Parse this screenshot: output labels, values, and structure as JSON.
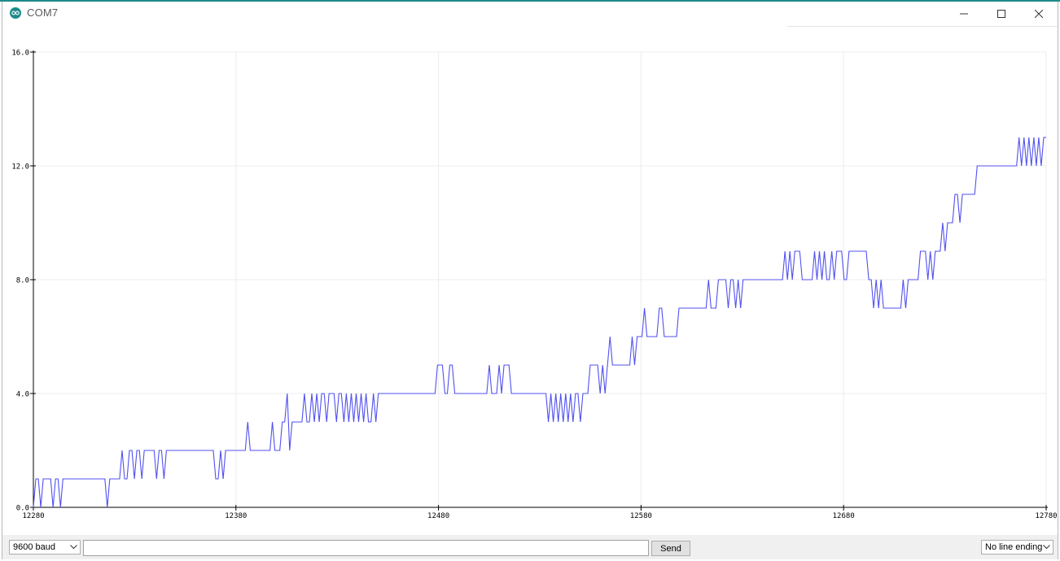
{
  "window": {
    "title": "COM7",
    "accent_color": "#1f8b8b"
  },
  "controls": {
    "minimize_icon": "minimize-icon",
    "maximize_icon": "maximize-icon",
    "close_icon": "close-icon"
  },
  "bottom_bar": {
    "baud_value": "9600 baud",
    "send_input_value": "",
    "send_label": "Send",
    "line_ending_value": "No line ending"
  },
  "chart_data": {
    "type": "line",
    "title": "",
    "xlabel": "",
    "ylabel": "",
    "xlim": [
      12280,
      12780
    ],
    "ylim": [
      0,
      16
    ],
    "x_ticks": [
      "12280",
      "12380",
      "12480",
      "12580",
      "12680",
      "12780"
    ],
    "y_ticks": [
      "0.0",
      "4.0",
      "8.0",
      "12.0",
      "16.0"
    ],
    "grid": true,
    "line_color": "#5050f0",
    "series": [
      {
        "values": [
          0,
          1,
          1,
          0,
          1,
          1,
          1,
          1,
          0,
          1,
          1,
          0,
          1,
          1,
          1,
          1,
          1,
          1,
          1,
          1,
          1,
          1,
          1,
          1,
          1,
          1,
          1,
          1,
          1,
          1,
          0,
          1,
          1,
          1,
          1,
          1,
          2,
          1,
          1,
          2,
          2,
          1,
          2,
          2,
          1,
          2,
          2,
          2,
          2,
          2,
          1,
          2,
          2,
          1,
          2,
          2,
          2,
          2,
          2,
          2,
          2,
          2,
          2,
          2,
          2,
          2,
          2,
          2,
          2,
          2,
          2,
          2,
          2,
          2,
          1,
          1,
          2,
          1,
          2,
          2,
          2,
          2,
          2,
          2,
          2,
          2,
          2,
          3,
          2,
          2,
          2,
          2,
          2,
          2,
          2,
          2,
          2,
          3,
          2,
          2,
          2,
          3,
          3,
          4,
          2,
          3,
          3,
          3,
          3,
          3,
          4,
          3,
          3,
          4,
          3,
          4,
          3,
          4,
          4,
          3,
          4,
          4,
          4,
          3,
          4,
          4,
          3,
          4,
          3,
          4,
          3,
          4,
          3,
          4,
          3,
          4,
          3,
          3,
          4,
          3,
          4,
          4,
          4,
          4,
          4,
          4,
          4,
          4,
          4,
          4,
          4,
          4,
          4,
          4,
          4,
          4,
          4,
          4,
          4,
          4,
          4,
          4,
          4,
          4,
          5,
          5,
          5,
          4,
          4,
          5,
          5,
          4,
          4,
          4,
          4,
          4,
          4,
          4,
          4,
          4,
          4,
          4,
          4,
          4,
          4,
          5,
          4,
          4,
          4,
          5,
          4,
          5,
          5,
          5,
          4,
          4,
          4,
          4,
          4,
          4,
          4,
          4,
          4,
          4,
          4,
          4,
          4,
          4,
          4,
          3,
          4,
          3,
          4,
          3,
          4,
          3,
          4,
          3,
          4,
          3,
          4,
          4,
          3,
          4,
          4,
          4,
          5,
          5,
          5,
          5,
          4,
          5,
          4,
          5,
          6,
          5,
          5,
          5,
          5,
          5,
          5,
          5,
          5,
          6,
          5,
          6,
          6,
          6,
          7,
          6,
          6,
          6,
          6,
          6,
          7,
          7,
          6,
          6,
          6,
          6,
          6,
          6,
          7,
          7,
          7,
          7,
          7,
          7,
          7,
          7,
          7,
          7,
          7,
          7,
          8,
          7,
          7,
          7,
          8,
          8,
          8,
          8,
          7,
          8,
          8,
          7,
          8,
          7,
          8,
          8,
          8,
          8,
          8,
          8,
          8,
          8,
          8,
          8,
          8,
          8,
          8,
          8,
          8,
          8,
          8,
          9,
          8,
          9,
          8,
          9,
          9,
          9,
          8,
          8,
          8,
          8,
          8,
          9,
          8,
          9,
          8,
          9,
          8,
          8,
          9,
          8,
          9,
          9,
          9,
          8,
          8,
          9,
          9,
          9,
          9,
          9,
          9,
          9,
          9,
          8,
          8,
          7,
          8,
          7,
          8,
          7,
          7,
          7,
          7,
          7,
          7,
          7,
          7,
          8,
          7,
          8,
          8,
          8,
          8,
          8,
          9,
          9,
          9,
          8,
          9,
          8,
          9,
          9,
          9,
          10,
          9,
          10,
          10,
          10,
          11,
          11,
          10,
          11,
          11,
          11,
          11,
          11,
          11,
          12,
          12,
          12,
          12,
          12,
          12,
          12,
          12,
          12,
          12,
          12,
          12,
          12,
          12,
          12,
          12,
          12,
          13,
          12,
          13,
          12,
          13,
          12,
          13,
          12,
          13,
          12,
          13,
          13
        ]
      }
    ]
  }
}
